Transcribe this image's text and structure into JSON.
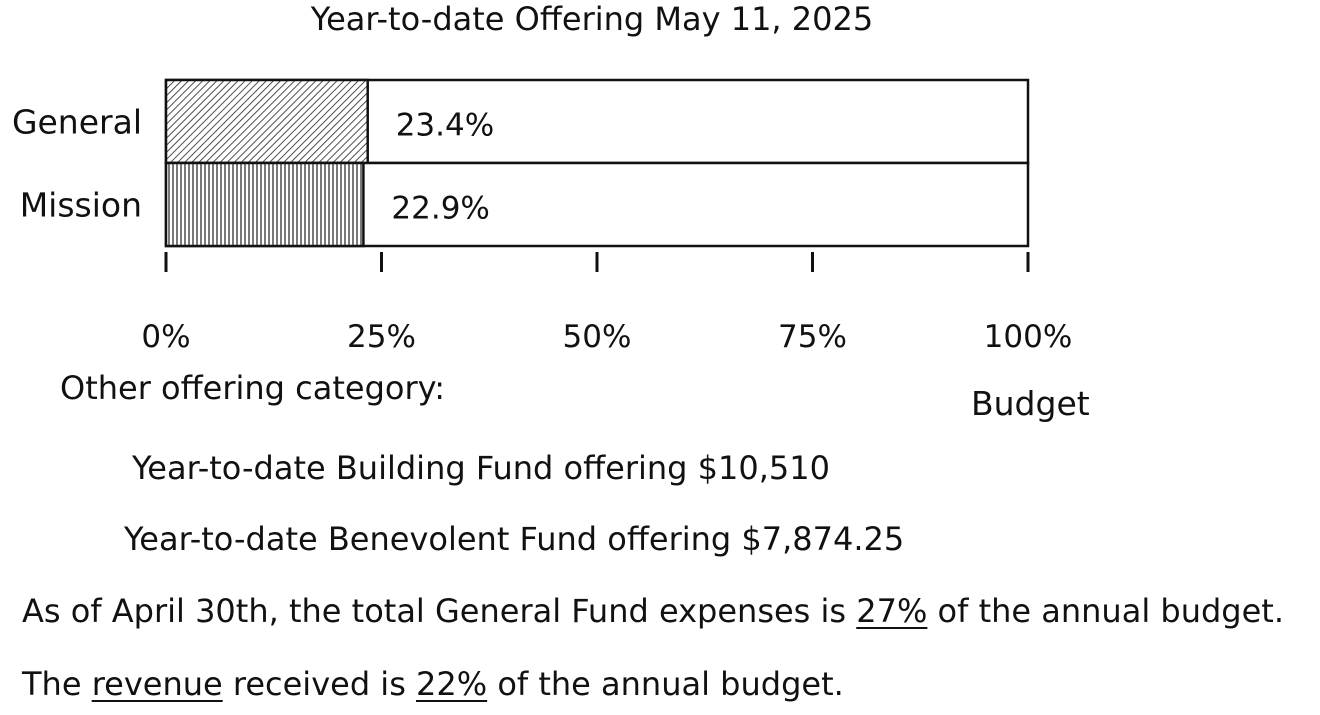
{
  "chart_data": {
    "type": "bar",
    "orientation": "horizontal",
    "stacked_to_budget": true,
    "title": "Year-to-date Offering May 11, 2025",
    "categories": [
      "General",
      "Mission"
    ],
    "values": [
      23.4,
      22.9
    ],
    "value_labels": [
      "23.4%",
      "22.9%"
    ],
    "patterns": [
      "diagonal-hatch",
      "vertical-hatch"
    ],
    "xlim": [
      0,
      100
    ],
    "ticks": [
      0,
      25,
      50,
      75,
      100
    ],
    "tick_labels": [
      "0%",
      "25%",
      "50%",
      "75%",
      "100%"
    ],
    "budget_label": "Budget",
    "grid": false,
    "legend": "none"
  },
  "notes": {
    "other_heading": "Other offering category:",
    "building_fund": "Year-to-date Building Fund offering $10,510",
    "benevolent_fund": "Year-to-date Benevolent Fund offering $7,874.25",
    "expenses": {
      "before": "As of April 30th, the total General Fund expenses is ",
      "pct": "27%",
      "after": " of the annual budget."
    },
    "revenue": {
      "before": "The ",
      "word": "revenue",
      "middle": " received is ",
      "pct": "22%",
      "after": " of the annual budget."
    }
  }
}
